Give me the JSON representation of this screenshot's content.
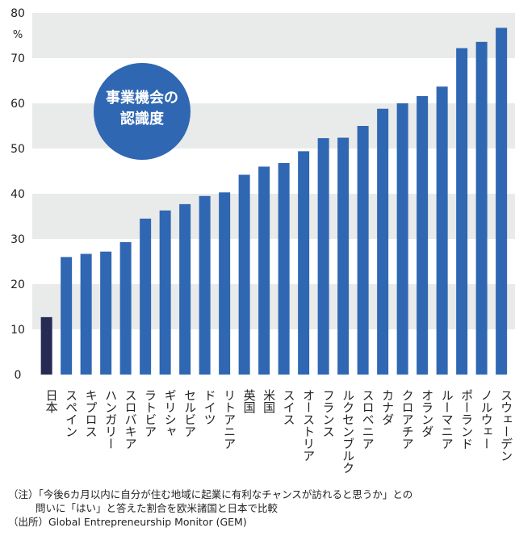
{
  "chart_data": {
    "type": "bar",
    "title": "事業機会の認識度",
    "title_lines": [
      "事業機会の",
      "認識度"
    ],
    "unit_label": "%",
    "ylim": [
      0,
      80
    ],
    "yticks": [
      0,
      10,
      20,
      30,
      40,
      50,
      60,
      70,
      80
    ],
    "grid_bands": true,
    "categories": [
      "日本",
      "スペイン",
      "キプロス",
      "ハンガリー",
      "スロバキア",
      "ラトビア",
      "ギリシャ",
      "セルビア",
      "ドイツ",
      "リトアニア",
      "英国",
      "米国",
      "スイス",
      "オーストリア",
      "フランス",
      "ルクセンブルク",
      "スロベニア",
      "カナダ",
      "クロアチア",
      "オランダ",
      "ルーマニア",
      "ポーランド",
      "ノルウェー",
      "スウェーデン"
    ],
    "values": [
      12.7,
      26.0,
      26.7,
      27.2,
      29.3,
      34.5,
      36.3,
      37.7,
      39.5,
      40.3,
      44.2,
      46.0,
      46.8,
      49.4,
      52.3,
      52.4,
      55.0,
      58.8,
      60.0,
      61.6,
      63.7,
      72.2,
      73.6,
      76.7
    ],
    "highlight_index": 0,
    "colors": {
      "bar": "#2f67b3",
      "highlight": "#252b52",
      "band": "#e9eaea",
      "badge": "#2f67b3",
      "badge_text": "#ffffff"
    }
  },
  "notes": {
    "note_line1": "（注）「今後6カ月以内に自分が住む地域に起業に有利なチャンスが訪れると思うか」との",
    "note_line2": "問いに「はい」と答えた割合を欧米諸国と日本で比較",
    "source": "（出所）Global Entrepreneurship Monitor (GEM)"
  }
}
